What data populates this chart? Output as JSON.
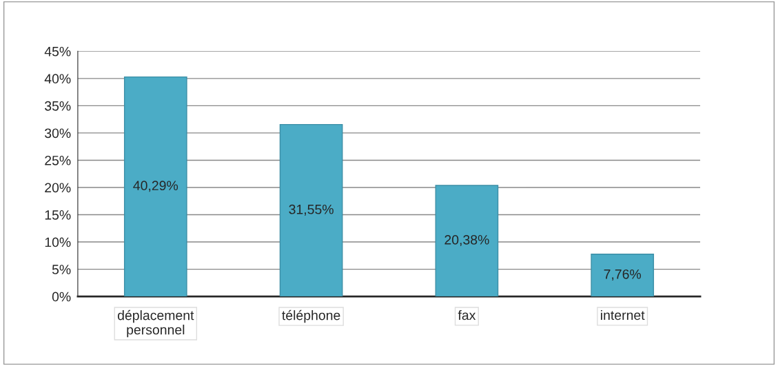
{
  "chart_data": {
    "type": "bar",
    "categories": [
      "déplacement personnel",
      "téléphone",
      "fax",
      "internet"
    ],
    "values": [
      40.29,
      31.55,
      20.38,
      7.76
    ],
    "value_labels": [
      "40,29%",
      "31,55%",
      "20,38%",
      "7,76%"
    ],
    "color": "#4bacc6",
    "ylim": [
      0,
      45
    ],
    "yticks": [
      {
        "value": 0,
        "label": "0%"
      },
      {
        "value": 5,
        "label": "5%"
      },
      {
        "value": 10,
        "label": "10%"
      },
      {
        "value": 15,
        "label": "15%"
      },
      {
        "value": 20,
        "label": "20%"
      },
      {
        "value": 25,
        "label": "25%"
      },
      {
        "value": 30,
        "label": "30%"
      },
      {
        "value": 35,
        "label": "35%"
      },
      {
        "value": 40,
        "label": "40%"
      },
      {
        "value": 45,
        "label": "45%"
      }
    ],
    "grid": "y"
  }
}
